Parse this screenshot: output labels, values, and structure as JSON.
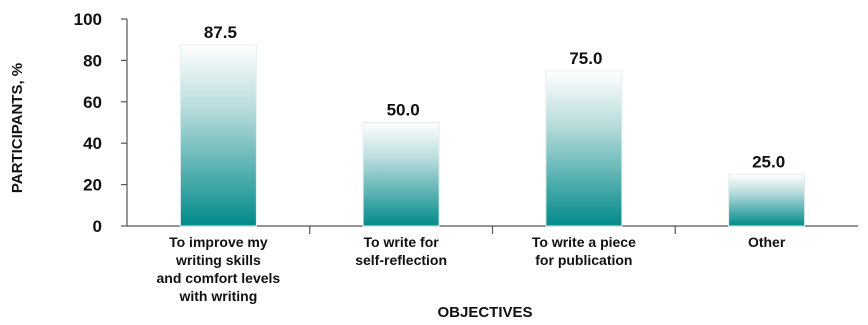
{
  "chart_data": {
    "type": "bar",
    "categories": [
      [
        "To improve my",
        "writing skills",
        "and comfort levels",
        "with writing"
      ],
      [
        "To write for",
        "self-reflection"
      ],
      [
        "To write a piece",
        "for publication"
      ],
      [
        "Other"
      ]
    ],
    "values": [
      87.5,
      50.0,
      75.0,
      25.0
    ],
    "value_labels": [
      "87.5",
      "50.0",
      "75.0",
      "25.0"
    ],
    "xlabel": "OBJECTIVES",
    "ylabel": "PARTICIPANTS, %",
    "ylim": [
      0,
      100
    ],
    "yticks": [
      "0",
      "20",
      "40",
      "60",
      "80",
      "100"
    ],
    "grid": false,
    "legend": "none",
    "colors": {
      "bar_top": "#ffffff",
      "bar_bottom": "#008a8a",
      "axis": "#555555",
      "text": "#111111"
    }
  }
}
